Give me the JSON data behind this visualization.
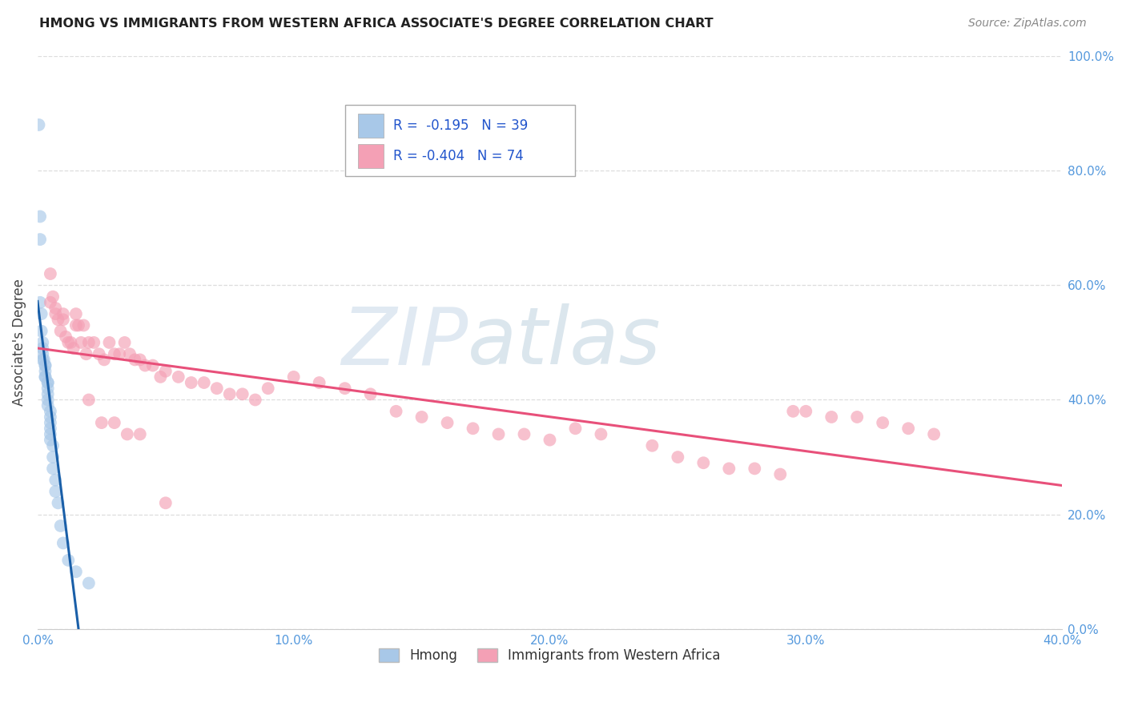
{
  "title": "HMONG VS IMMIGRANTS FROM WESTERN AFRICA ASSOCIATE'S DEGREE CORRELATION CHART",
  "source": "Source: ZipAtlas.com",
  "ylabel": "Associate's Degree",
  "watermark_zip": "ZIP",
  "watermark_atlas": "atlas",
  "hmong_color": "#a8c8e8",
  "western_africa_color": "#f4a0b5",
  "hmong_line_color": "#1a5fa8",
  "western_africa_line_color": "#e8507a",
  "legend_text1": "R =  -0.195   N = 39",
  "legend_text2": "R = -0.404   N = 74",
  "xlim": [
    0.0,
    0.4
  ],
  "ylim": [
    0.0,
    1.0
  ],
  "x_ticks": [
    0.0,
    0.1,
    0.2,
    0.3,
    0.4
  ],
  "y_ticks": [
    0.0,
    0.2,
    0.4,
    0.6,
    0.8,
    1.0
  ],
  "tick_color": "#5599dd",
  "grid_color": "#dddddd",
  "title_color": "#222222",
  "source_color": "#888888",
  "hmong_x": [
    0.0005,
    0.001,
    0.001,
    0.001,
    0.0015,
    0.0015,
    0.002,
    0.002,
    0.002,
    0.002,
    0.0025,
    0.003,
    0.003,
    0.003,
    0.003,
    0.003,
    0.004,
    0.004,
    0.004,
    0.004,
    0.004,
    0.004,
    0.005,
    0.005,
    0.005,
    0.005,
    0.005,
    0.005,
    0.006,
    0.006,
    0.006,
    0.007,
    0.007,
    0.008,
    0.009,
    0.01,
    0.012,
    0.015,
    0.02
  ],
  "hmong_y": [
    0.88,
    0.72,
    0.68,
    0.57,
    0.55,
    0.52,
    0.5,
    0.49,
    0.48,
    0.47,
    0.47,
    0.46,
    0.46,
    0.45,
    0.44,
    0.44,
    0.43,
    0.43,
    0.42,
    0.41,
    0.4,
    0.39,
    0.38,
    0.37,
    0.36,
    0.35,
    0.34,
    0.33,
    0.32,
    0.3,
    0.28,
    0.26,
    0.24,
    0.22,
    0.18,
    0.15,
    0.12,
    0.1,
    0.08
  ],
  "wa_x": [
    0.005,
    0.006,
    0.007,
    0.008,
    0.009,
    0.01,
    0.011,
    0.012,
    0.013,
    0.014,
    0.015,
    0.016,
    0.017,
    0.018,
    0.019,
    0.02,
    0.022,
    0.024,
    0.026,
    0.028,
    0.03,
    0.032,
    0.034,
    0.036,
    0.038,
    0.04,
    0.042,
    0.045,
    0.048,
    0.05,
    0.055,
    0.06,
    0.065,
    0.07,
    0.075,
    0.08,
    0.085,
    0.09,
    0.1,
    0.11,
    0.12,
    0.13,
    0.14,
    0.15,
    0.16,
    0.17,
    0.18,
    0.19,
    0.2,
    0.21,
    0.22,
    0.24,
    0.25,
    0.26,
    0.27,
    0.28,
    0.29,
    0.295,
    0.3,
    0.31,
    0.32,
    0.33,
    0.34,
    0.35,
    0.005,
    0.007,
    0.01,
    0.015,
    0.02,
    0.025,
    0.03,
    0.035,
    0.04,
    0.05
  ],
  "wa_y": [
    0.62,
    0.58,
    0.55,
    0.54,
    0.52,
    0.54,
    0.51,
    0.5,
    0.5,
    0.49,
    0.55,
    0.53,
    0.5,
    0.53,
    0.48,
    0.5,
    0.5,
    0.48,
    0.47,
    0.5,
    0.48,
    0.48,
    0.5,
    0.48,
    0.47,
    0.47,
    0.46,
    0.46,
    0.44,
    0.45,
    0.44,
    0.43,
    0.43,
    0.42,
    0.41,
    0.41,
    0.4,
    0.42,
    0.44,
    0.43,
    0.42,
    0.41,
    0.38,
    0.37,
    0.36,
    0.35,
    0.34,
    0.34,
    0.33,
    0.35,
    0.34,
    0.32,
    0.3,
    0.29,
    0.28,
    0.28,
    0.27,
    0.38,
    0.38,
    0.37,
    0.37,
    0.36,
    0.35,
    0.34,
    0.57,
    0.56,
    0.55,
    0.53,
    0.4,
    0.36,
    0.36,
    0.34,
    0.34,
    0.22
  ]
}
